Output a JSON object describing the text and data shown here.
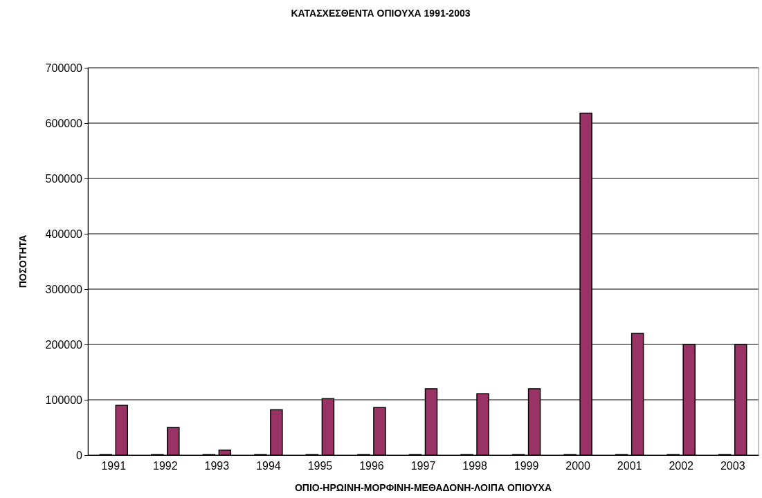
{
  "chart_data": {
    "type": "bar",
    "title": "ΚΑΤΑΣΧΕΣΘΕΝΤΑ ΟΠΙΟΥΧΑ 1991-2003",
    "xlabel": "ΟΠΙΟ-ΗΡΩΙΝΗ-ΜΟΡΦΙΝΗ-ΜΕΘΑΔΟΝΗ-ΛΟΙΠΑ ΟΠΙΟΥΧΑ",
    "ylabel": "ΠΟΣΟΤΗΤΑ",
    "categories": [
      "1991",
      "1992",
      "1993",
      "1994",
      "1995",
      "1996",
      "1997",
      "1998",
      "1999",
      "2000",
      "2001",
      "2002",
      "2003"
    ],
    "series": [
      {
        "color": "#000000",
        "values": [
          1000,
          1000,
          1000,
          1000,
          1000,
          1000,
          1000,
          1000,
          1000,
          1000,
          1000,
          1000,
          1000
        ]
      },
      {
        "color": "#993366",
        "values": [
          90000,
          50000,
          9000,
          82000,
          102000,
          86000,
          120000,
          111000,
          120000,
          618000,
          220000,
          200000,
          200000
        ]
      }
    ],
    "ylim": [
      0,
      700000
    ],
    "yticks": [
      0,
      100000,
      200000,
      300000,
      400000,
      500000,
      600000,
      700000
    ],
    "grid": "y"
  }
}
